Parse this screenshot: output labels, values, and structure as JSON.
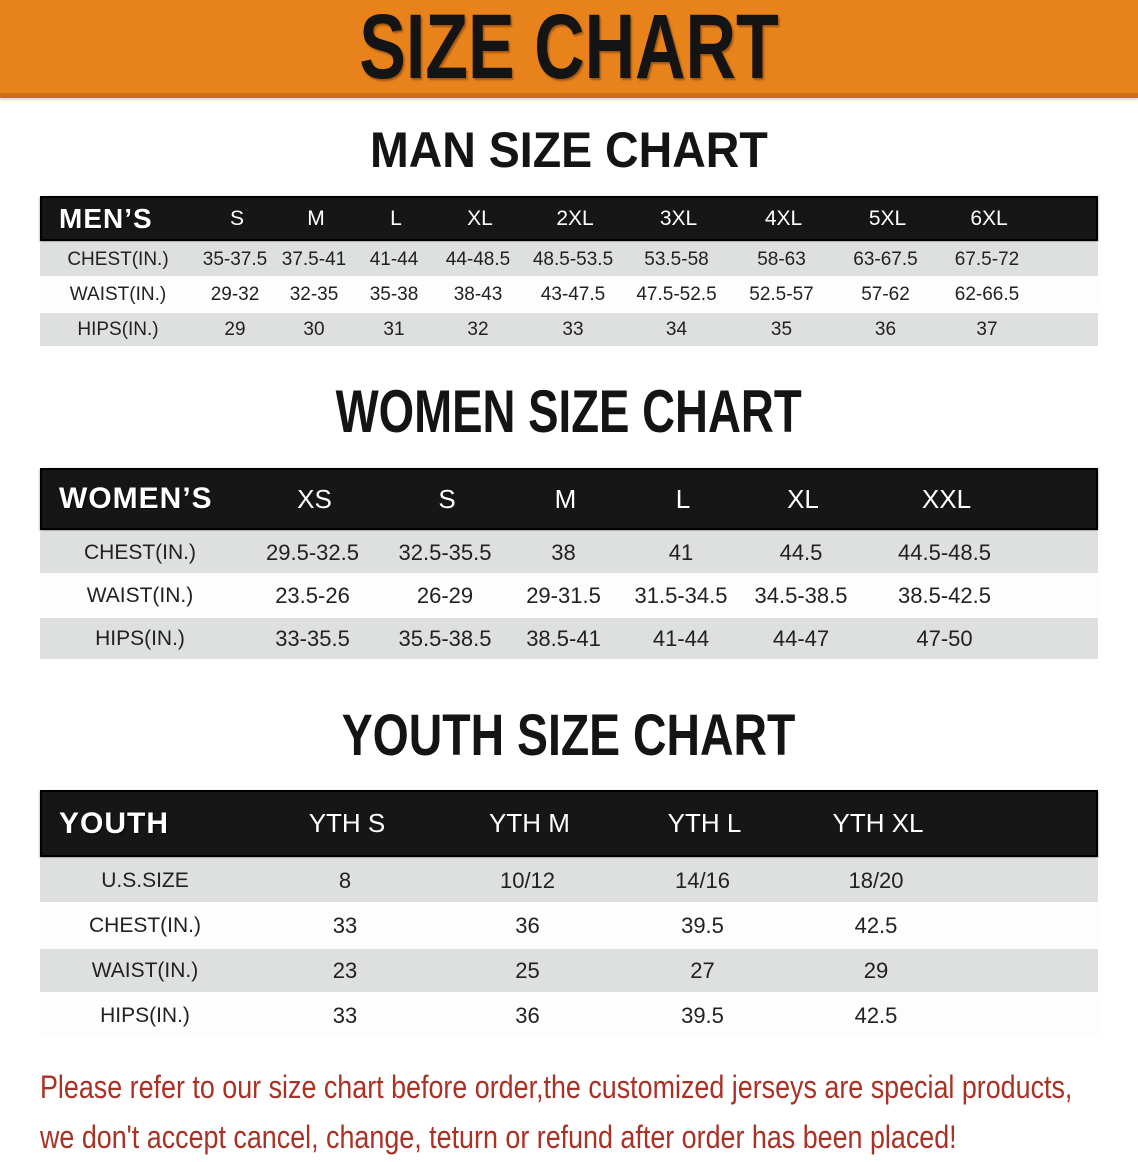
{
  "banner": {
    "title": "SIZE CHART",
    "bg_color": "#E8831C"
  },
  "sections": [
    {
      "heading": "MAN SIZE CHART",
      "table": {
        "label": "MEN’S",
        "columns": [
          "S",
          "M",
          "L",
          "XL",
          "2XL",
          "3XL",
          "4XL",
          "5XL",
          "6XL"
        ],
        "rows": [
          {
            "label": "CHEST(IN.)",
            "values": [
              "35-37.5",
              "37.5-41",
              "41-44",
              "44-48.5",
              "48.5-53.5",
              "53.5-58",
              "58-63",
              "63-67.5",
              "67.5-72"
            ]
          },
          {
            "label": "WAIST(IN.)",
            "values": [
              "29-32",
              "32-35",
              "35-38",
              "38-43",
              "43-47.5",
              "47.5-52.5",
              "52.5-57",
              "57-62",
              "62-66.5"
            ]
          },
          {
            "label": "HIPS(IN.)",
            "values": [
              "29",
              "30",
              "31",
              "32",
              "33",
              "34",
              "35",
              "36",
              "37"
            ]
          }
        ]
      }
    },
    {
      "heading": "WOMEN SIZE CHART",
      "table": {
        "label": "WOMEN’S",
        "columns": [
          "XS",
          "S",
          "M",
          "L",
          "XL",
          "XXL"
        ],
        "rows": [
          {
            "label": "CHEST(IN.)",
            "values": [
              "29.5-32.5",
              "32.5-35.5",
              "38",
              "41",
              "44.5",
              "44.5-48.5"
            ]
          },
          {
            "label": "WAIST(IN.)",
            "values": [
              "23.5-26",
              "26-29",
              "29-31.5",
              "31.5-34.5",
              "34.5-38.5",
              "38.5-42.5"
            ]
          },
          {
            "label": "HIPS(IN.)",
            "values": [
              "33-35.5",
              "35.5-38.5",
              "38.5-41",
              "41-44",
              "44-47",
              "47-50"
            ]
          }
        ]
      }
    },
    {
      "heading": "YOUTH SIZE CHART",
      "table": {
        "label": "YOUTH",
        "columns": [
          "YTH S",
          "YTH M",
          "YTH L",
          "YTH XL"
        ],
        "rows": [
          {
            "label": "U.S.SIZE",
            "values": [
              "8",
              "10/12",
              "14/16",
              "18/20"
            ]
          },
          {
            "label": "CHEST(IN.)",
            "values": [
              "33",
              "36",
              "39.5",
              "42.5"
            ]
          },
          {
            "label": "WAIST(IN.)",
            "values": [
              "23",
              "25",
              "27",
              "29"
            ]
          },
          {
            "label": "HIPS(IN.)",
            "values": [
              "33",
              "36",
              "39.5",
              "42.5"
            ]
          }
        ]
      }
    }
  ],
  "disclaimer": {
    "line1": "Please refer to our size chart before order,the customized jerseys are special products,",
    "line2": "we don't accept cancel, change, teturn or refund after order has been placed!",
    "color": "#A93226"
  }
}
